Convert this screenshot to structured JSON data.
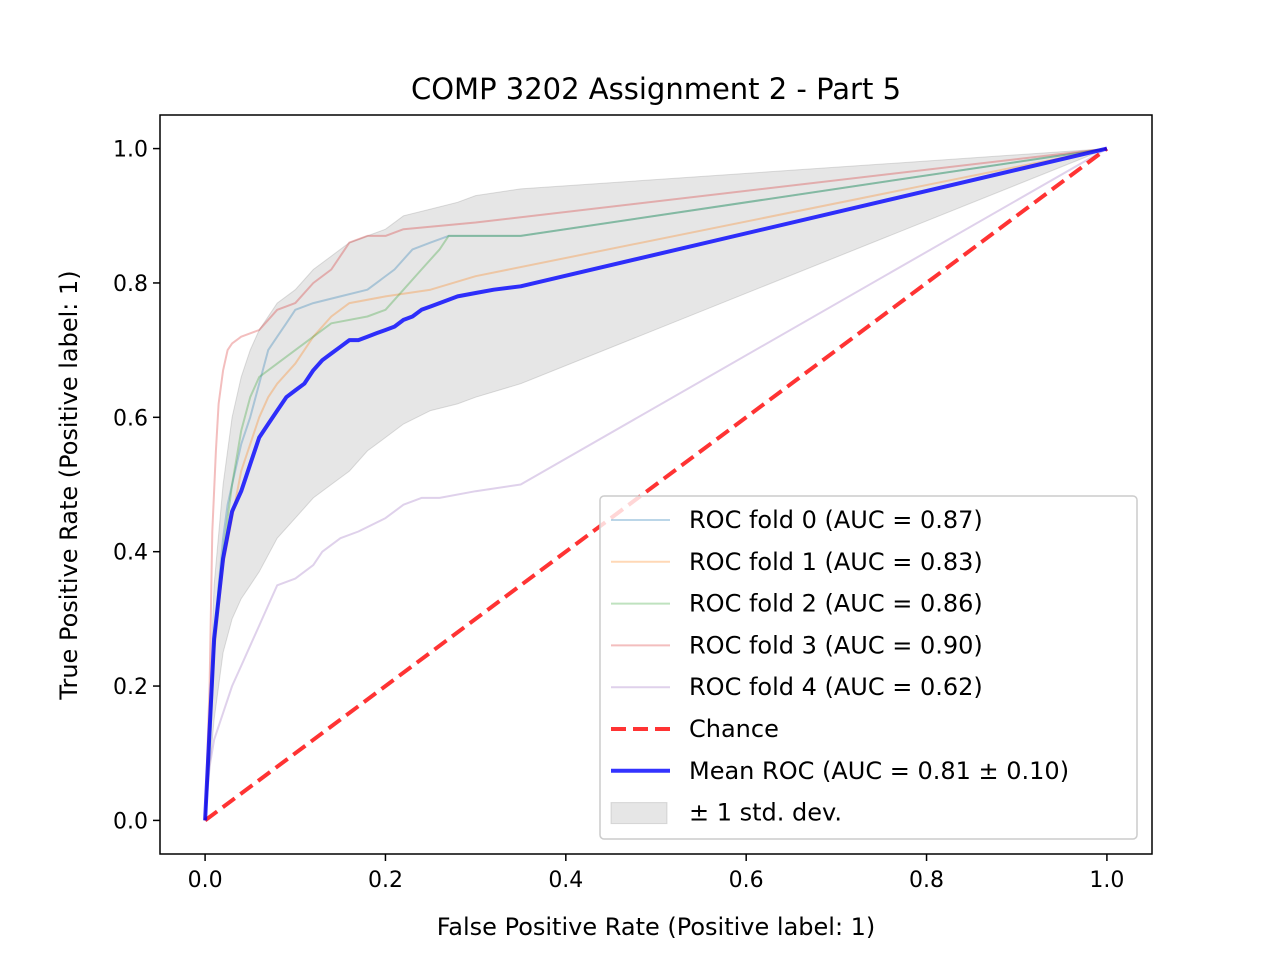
{
  "chart_data": {
    "type": "line",
    "title": "COMP 3202 Assignment 2 - Part 5",
    "xlabel": "False Positive Rate (Positive label: 1)",
    "ylabel": "True Positive Rate (Positive label: 1)",
    "xlim": [
      -0.05,
      1.05
    ],
    "ylim": [
      -0.05,
      1.05
    ],
    "x_ticks": [
      "0.0",
      "0.2",
      "0.4",
      "0.6",
      "0.8",
      "1.0"
    ],
    "y_ticks": [
      "0.0",
      "0.2",
      "0.4",
      "0.6",
      "0.8",
      "1.0"
    ],
    "grid": false,
    "legend_position": "bottom-right",
    "series": [
      {
        "name": "ROC fold 0 (AUC = 0.87)",
        "color": "#1f77b4",
        "opacity": 0.3,
        "x": [
          0,
          0.005,
          0.01,
          0.015,
          0.02,
          0.025,
          0.03,
          0.035,
          0.04,
          0.05,
          0.06,
          0.07,
          0.08,
          0.09,
          0.1,
          0.12,
          0.15,
          0.18,
          0.21,
          0.23,
          0.25,
          0.27,
          0.3,
          0.35,
          1.0
        ],
        "y": [
          0,
          0.1,
          0.25,
          0.35,
          0.42,
          0.47,
          0.5,
          0.53,
          0.56,
          0.6,
          0.65,
          0.7,
          0.72,
          0.74,
          0.76,
          0.77,
          0.78,
          0.79,
          0.82,
          0.85,
          0.86,
          0.87,
          0.87,
          0.87,
          1.0
        ]
      },
      {
        "name": "ROC fold 1 (AUC = 0.83)",
        "color": "#ff7f0e",
        "opacity": 0.3,
        "x": [
          0,
          0.005,
          0.01,
          0.02,
          0.03,
          0.04,
          0.05,
          0.06,
          0.07,
          0.08,
          0.1,
          0.12,
          0.14,
          0.16,
          0.2,
          0.25,
          0.3,
          1.0
        ],
        "y": [
          0,
          0.12,
          0.25,
          0.38,
          0.45,
          0.52,
          0.56,
          0.6,
          0.63,
          0.65,
          0.68,
          0.72,
          0.75,
          0.77,
          0.78,
          0.79,
          0.81,
          1.0
        ]
      },
      {
        "name": "ROC fold 2 (AUC = 0.86)",
        "color": "#2ca02c",
        "opacity": 0.3,
        "x": [
          0,
          0.005,
          0.01,
          0.02,
          0.03,
          0.04,
          0.05,
          0.06,
          0.08,
          0.1,
          0.12,
          0.14,
          0.18,
          0.2,
          0.22,
          0.24,
          0.26,
          0.27,
          0.35,
          1.0
        ],
        "y": [
          0,
          0.12,
          0.27,
          0.4,
          0.5,
          0.58,
          0.63,
          0.66,
          0.68,
          0.7,
          0.72,
          0.74,
          0.75,
          0.76,
          0.79,
          0.82,
          0.85,
          0.87,
          0.87,
          1.0
        ]
      },
      {
        "name": "ROC fold 3 (AUC = 0.90)",
        "color": "#d62728",
        "opacity": 0.3,
        "x": [
          0,
          0.005,
          0.008,
          0.012,
          0.015,
          0.02,
          0.025,
          0.03,
          0.04,
          0.06,
          0.08,
          0.1,
          0.12,
          0.14,
          0.16,
          0.18,
          0.2,
          0.22,
          0.3,
          1.0
        ],
        "y": [
          0,
          0.2,
          0.43,
          0.55,
          0.62,
          0.67,
          0.7,
          0.71,
          0.72,
          0.73,
          0.76,
          0.77,
          0.8,
          0.82,
          0.86,
          0.87,
          0.87,
          0.88,
          0.89,
          1.0
        ]
      },
      {
        "name": "ROC fold 4 (AUC = 0.62)",
        "color": "#9467bd",
        "opacity": 0.3,
        "x": [
          0,
          0.005,
          0.01,
          0.02,
          0.03,
          0.04,
          0.05,
          0.06,
          0.07,
          0.08,
          0.1,
          0.12,
          0.13,
          0.15,
          0.17,
          0.2,
          0.22,
          0.24,
          0.26,
          0.3,
          0.35,
          1.0
        ],
        "y": [
          0,
          0.08,
          0.12,
          0.16,
          0.2,
          0.23,
          0.26,
          0.29,
          0.32,
          0.35,
          0.36,
          0.38,
          0.4,
          0.42,
          0.43,
          0.45,
          0.47,
          0.48,
          0.48,
          0.49,
          0.5,
          1.0
        ]
      },
      {
        "name": "Chance",
        "color": "#ff0000",
        "opacity": 0.8,
        "dashed": true,
        "x": [
          0,
          1
        ],
        "y": [
          0,
          1
        ]
      },
      {
        "name": "Mean ROC (AUC = 0.81 ± 0.10)",
        "color": "#0000ff",
        "opacity": 0.8,
        "x": [
          0,
          0.01,
          0.02,
          0.03,
          0.04,
          0.05,
          0.06,
          0.07,
          0.08,
          0.09,
          0.1,
          0.11,
          0.12,
          0.13,
          0.14,
          0.15,
          0.16,
          0.17,
          0.18,
          0.19,
          0.2,
          0.21,
          0.22,
          0.23,
          0.24,
          0.25,
          0.26,
          0.27,
          0.28,
          0.3,
          0.32,
          0.35,
          1.0
        ],
        "y": [
          0,
          0.27,
          0.39,
          0.46,
          0.49,
          0.53,
          0.57,
          0.59,
          0.61,
          0.63,
          0.64,
          0.65,
          0.67,
          0.685,
          0.695,
          0.705,
          0.715,
          0.715,
          0.72,
          0.725,
          0.73,
          0.735,
          0.745,
          0.75,
          0.76,
          0.765,
          0.77,
          0.775,
          0.78,
          0.785,
          0.79,
          0.795,
          1.0
        ]
      }
    ],
    "std_band": {
      "name": "± 1 std. dev.",
      "color": "#808080",
      "opacity": 0.2,
      "x": [
        0,
        0.01,
        0.02,
        0.03,
        0.04,
        0.05,
        0.06,
        0.08,
        0.1,
        0.12,
        0.14,
        0.16,
        0.18,
        0.2,
        0.22,
        0.25,
        0.28,
        0.3,
        0.35,
        1.0
      ],
      "upper": [
        0,
        0.35,
        0.5,
        0.6,
        0.66,
        0.7,
        0.73,
        0.77,
        0.79,
        0.82,
        0.84,
        0.86,
        0.87,
        0.88,
        0.9,
        0.91,
        0.92,
        0.93,
        0.94,
        1.0
      ],
      "lower": [
        0,
        0.15,
        0.25,
        0.3,
        0.33,
        0.35,
        0.37,
        0.42,
        0.45,
        0.48,
        0.5,
        0.52,
        0.55,
        0.57,
        0.59,
        0.61,
        0.62,
        0.63,
        0.65,
        1.0
      ]
    }
  }
}
